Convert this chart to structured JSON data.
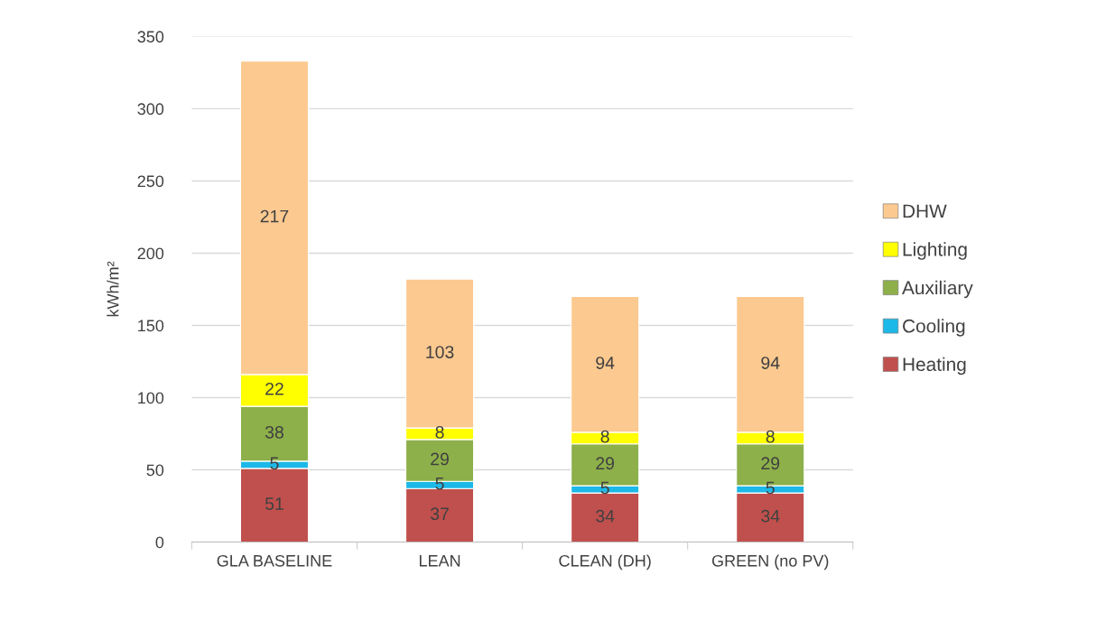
{
  "chart_data": {
    "type": "bar",
    "stacked": true,
    "ylabel": "kWh/m²",
    "categories": [
      "GLA BASELINE",
      "LEAN",
      "CLEAN (DH)",
      "GREEN (no PV)"
    ],
    "series": [
      {
        "name": "Heating",
        "color": "#c0504d",
        "values": [
          51,
          37,
          34,
          34
        ]
      },
      {
        "name": "Cooling",
        "color": "#1cb8e8",
        "values": [
          5,
          5,
          5,
          5
        ]
      },
      {
        "name": "Auxiliary",
        "color": "#8db04a",
        "values": [
          38,
          29,
          29,
          29
        ]
      },
      {
        "name": "Lighting",
        "color": "#ffff00",
        "values": [
          22,
          8,
          8,
          8
        ]
      },
      {
        "name": "DHW",
        "color": "#fcc990",
        "values": [
          217,
          103,
          94,
          94
        ]
      }
    ],
    "ylim": [
      0,
      350
    ],
    "yticks": [
      0,
      50,
      100,
      150,
      200,
      250,
      300,
      350
    ],
    "grid": "y",
    "legend": "right",
    "data_labels": true
  }
}
